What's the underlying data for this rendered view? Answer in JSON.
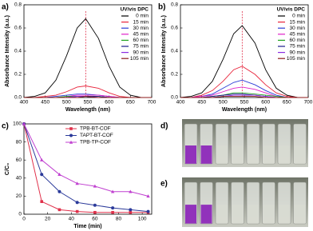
{
  "chart_data": [
    {
      "type": "line",
      "label": "a)",
      "xlabel": "Wavelength (nm)",
      "ylabel": "Absorbance Intensity (a.u.)",
      "legend_title": "UV/vis DPC",
      "legend": "upper right",
      "xlim": [
        400,
        700
      ],
      "xticks": [
        400,
        450,
        500,
        550,
        600,
        650,
        700
      ],
      "ylim": [
        0,
        0.8
      ],
      "yticks": [
        {
          "value": 0,
          "label": "0.0"
        },
        0.2,
        0.4,
        0.6,
        0.8
      ],
      "vline": 545,
      "x": [
        400,
        425,
        450,
        475,
        500,
        525,
        545,
        575,
        600,
        625,
        650,
        675,
        700
      ],
      "series": [
        {
          "name": "0 min",
          "color": "#000000",
          "values": [
            0,
            0.01,
            0.04,
            0.15,
            0.36,
            0.6,
            0.68,
            0.51,
            0.27,
            0.09,
            0.02,
            0,
            0
          ]
        },
        {
          "name": "15 min",
          "color": "#e8233a",
          "values": [
            0,
            0,
            0.01,
            0.02,
            0.05,
            0.09,
            0.1,
            0.08,
            0.04,
            0.01,
            0,
            0,
            0
          ]
        },
        {
          "name": "30 min",
          "color": "#2a3cd6",
          "values": [
            0,
            0,
            0,
            0.01,
            0.02,
            0.03,
            0.03,
            0.02,
            0.01,
            0,
            0,
            0,
            0
          ]
        },
        {
          "name": "45 min",
          "color": "#e020c8",
          "values": [
            0,
            0,
            0,
            0,
            0.01,
            0.02,
            0.02,
            0.02,
            0.01,
            0,
            0,
            0,
            0
          ]
        },
        {
          "name": "60 min",
          "color": "#1fa31f",
          "values": [
            0,
            0,
            0,
            0,
            0.01,
            0.01,
            0.01,
            0.01,
            0,
            0,
            0,
            0,
            0
          ]
        },
        {
          "name": "75 min",
          "color": "#1a1a8c",
          "values": [
            0,
            0,
            0,
            0,
            0,
            0.01,
            0.01,
            0.01,
            0,
            0,
            0,
            0,
            0
          ]
        },
        {
          "name": "90 min",
          "color": "#8a2be2",
          "values": [
            0,
            0,
            0,
            0,
            0,
            0.01,
            0.01,
            0,
            0,
            0,
            0,
            0,
            0
          ]
        },
        {
          "name": "105 min",
          "color": "#8b1a1a",
          "values": [
            0,
            0,
            0,
            0,
            0,
            0,
            0.01,
            0,
            0,
            0,
            0,
            0,
            0
          ]
        }
      ]
    },
    {
      "type": "line",
      "label": "b)",
      "xlabel": "Wavelength (nm)",
      "ylabel": "Absorbance Intensity (a.u.)",
      "legend_title": "UV/vis DPC",
      "legend": "upper right",
      "xlim": [
        400,
        700
      ],
      "xticks": [
        400,
        450,
        500,
        550,
        600,
        650,
        700
      ],
      "ylim": [
        0,
        0.8
      ],
      "yticks": [
        {
          "value": 0,
          "label": "0.0"
        },
        0.2,
        0.4,
        0.6,
        0.8
      ],
      "vline": 545,
      "x": [
        400,
        425,
        450,
        475,
        500,
        525,
        545,
        575,
        600,
        625,
        650,
        675,
        700
      ],
      "series": [
        {
          "name": "0 min",
          "color": "#000000",
          "values": [
            0,
            0.01,
            0.04,
            0.14,
            0.33,
            0.55,
            0.62,
            0.47,
            0.24,
            0.08,
            0.02,
            0,
            0
          ]
        },
        {
          "name": "15 min",
          "color": "#e8233a",
          "values": [
            0,
            0,
            0.02,
            0.06,
            0.14,
            0.24,
            0.27,
            0.2,
            0.11,
            0.04,
            0.01,
            0,
            0
          ]
        },
        {
          "name": "30 min",
          "color": "#2a3cd6",
          "values": [
            0,
            0,
            0.01,
            0.03,
            0.08,
            0.13,
            0.15,
            0.11,
            0.06,
            0.02,
            0,
            0,
            0
          ]
        },
        {
          "name": "45 min",
          "color": "#e020c8",
          "values": [
            0,
            0,
            0.01,
            0.02,
            0.05,
            0.08,
            0.09,
            0.07,
            0.04,
            0.01,
            0,
            0,
            0
          ]
        },
        {
          "name": "60 min",
          "color": "#1fa31f",
          "values": [
            0,
            0,
            0,
            0.01,
            0.02,
            0.04,
            0.04,
            0.03,
            0.02,
            0.01,
            0,
            0,
            0
          ]
        },
        {
          "name": "75 min",
          "color": "#1a1a8c",
          "values": [
            0,
            0,
            0,
            0.01,
            0.02,
            0.03,
            0.03,
            0.02,
            0.01,
            0,
            0,
            0,
            0
          ]
        },
        {
          "name": "90 min",
          "color": "#8a2be2",
          "values": [
            0,
            0,
            0,
            0,
            0.01,
            0.02,
            0.02,
            0.02,
            0.01,
            0,
            0,
            0,
            0
          ]
        },
        {
          "name": "105 min",
          "color": "#8b1a1a",
          "values": [
            0,
            0,
            0,
            0,
            0.01,
            0.01,
            0.01,
            0.01,
            0,
            0,
            0,
            0,
            0
          ]
        }
      ]
    },
    {
      "type": "line",
      "label": "c)",
      "xlabel": "Time (min)",
      "ylabel": "C/C₀",
      "legend": "upper right",
      "xlim": [
        0,
        108
      ],
      "xticks": [
        0,
        20,
        40,
        60,
        80,
        100
      ],
      "ylim": [
        0,
        100
      ],
      "yticks": [
        0,
        20,
        40,
        60,
        80,
        100
      ],
      "x": [
        0,
        15,
        30,
        45,
        60,
        75,
        90,
        105
      ],
      "series": [
        {
          "name": "TPB-BT-COF",
          "color": "#e0304a",
          "marker": "square",
          "values": [
            100,
            14,
            5,
            3,
            2,
            2,
            2,
            2
          ]
        },
        {
          "name": "TAPT-BT-COF",
          "color": "#2b3a9a",
          "marker": "circle",
          "values": [
            100,
            44,
            25,
            13,
            10,
            7,
            5,
            3
          ]
        },
        {
          "name": "TPB-TP-COF",
          "color": "#c040d0",
          "marker": "triangle",
          "values": [
            100,
            60,
            44,
            34,
            31,
            25,
            25,
            20
          ]
        }
      ]
    }
  ],
  "photos": [
    {
      "label": "d)"
    },
    {
      "label": "e)"
    }
  ]
}
